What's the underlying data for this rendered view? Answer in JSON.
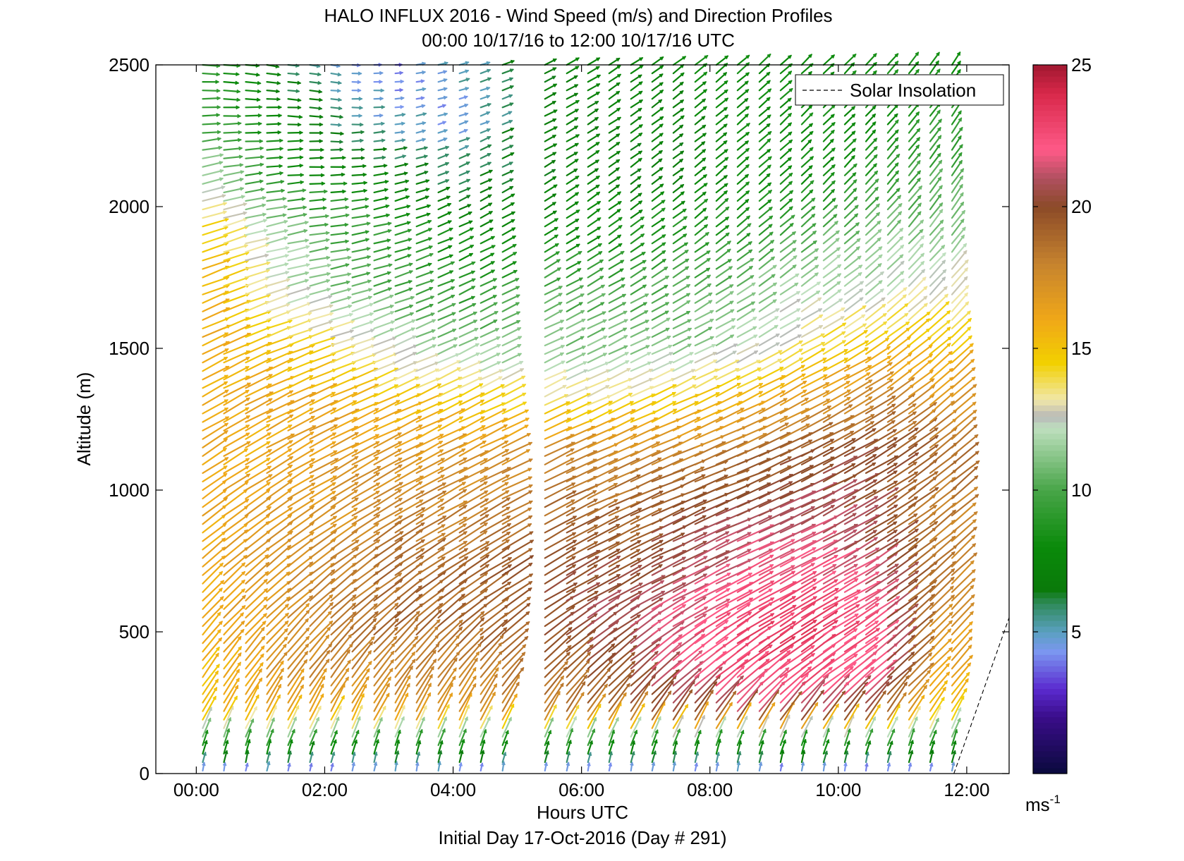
{
  "chart_data": {
    "type": "wind-barb profile (quiver)",
    "title": "HALO INFLUX 2016 - Wind Speed (m/s) and Direction Profiles",
    "subtitle": "00:00 10/17/16 to 12:00 10/17/16  UTC",
    "xlabel": "Hours UTC",
    "ylabel": "Altitude (m)",
    "footer": "Initial Day 17-Oct-2016 (Day # 291)",
    "xlim": [
      -0.63,
      12.66
    ],
    "ylim": [
      0,
      2500
    ],
    "x_ticks": [
      {
        "v": 0,
        "label": "00:00"
      },
      {
        "v": 2,
        "label": "02:00"
      },
      {
        "v": 4,
        "label": "04:00"
      },
      {
        "v": 6,
        "label": "06:00"
      },
      {
        "v": 8,
        "label": "08:00"
      },
      {
        "v": 10,
        "label": "10:00"
      },
      {
        "v": 12,
        "label": "12:00"
      }
    ],
    "y_ticks": [
      {
        "v": 0,
        "label": "0"
      },
      {
        "v": 500,
        "label": "500"
      },
      {
        "v": 1000,
        "label": "1000"
      },
      {
        "v": 1500,
        "label": "1500"
      },
      {
        "v": 2000,
        "label": "2000"
      },
      {
        "v": 2500,
        "label": "2500"
      }
    ],
    "legend": {
      "entries": [
        "Solar Insolation"
      ],
      "placement": "top-right"
    },
    "colorbar": {
      "range": [
        0,
        25
      ],
      "ticks": [
        {
          "v": 5,
          "label": "5"
        },
        {
          "v": 10,
          "label": "10"
        },
        {
          "v": 15,
          "label": "15"
        },
        {
          "v": 20,
          "label": "20"
        },
        {
          "v": 25,
          "label": "25"
        }
      ],
      "unit_base": "ms",
      "unit_exp": "-1",
      "stops": [
        {
          "v": 0,
          "color": "#0a0a3c"
        },
        {
          "v": 2,
          "color": "#3a0d8a"
        },
        {
          "v": 3,
          "color": "#5b2bd0"
        },
        {
          "v": 4.3,
          "color": "#7b96f0"
        },
        {
          "v": 5,
          "color": "#5aa0c0"
        },
        {
          "v": 6,
          "color": "#2f8a5a"
        },
        {
          "v": 6.5,
          "color": "#0a7a0a"
        },
        {
          "v": 8,
          "color": "#0a8a0a"
        },
        {
          "v": 10,
          "color": "#48a548"
        },
        {
          "v": 12.2,
          "color": "#bfe0bf"
        },
        {
          "v": 12.6,
          "color": "#b8b8b8"
        },
        {
          "v": 13.2,
          "color": "#f1e8a8"
        },
        {
          "v": 14.5,
          "color": "#f2d000"
        },
        {
          "v": 16,
          "color": "#f0a818"
        },
        {
          "v": 18,
          "color": "#c6832e"
        },
        {
          "v": 20,
          "color": "#8b4a28"
        },
        {
          "v": 21,
          "color": "#b05060"
        },
        {
          "v": 22,
          "color": "#ff5a88"
        },
        {
          "v": 24,
          "color": "#d8284a"
        },
        {
          "v": 25,
          "color": "#a01830"
        }
      ]
    },
    "data_gap_hours": [
      4.75,
      5.35
    ],
    "profile_times_hours": [
      0.1,
      0.43,
      0.77,
      1.1,
      1.43,
      1.77,
      2.1,
      2.43,
      2.77,
      3.1,
      3.43,
      3.77,
      4.1,
      4.43,
      4.77,
      5.43,
      5.77,
      6.1,
      6.43,
      6.77,
      7.1,
      7.43,
      7.77,
      8.1,
      8.43,
      8.77,
      9.1,
      9.43,
      9.77,
      10.1,
      10.43,
      10.77,
      11.1,
      11.43,
      11.77
    ],
    "profile_altitude_step_m": 30,
    "speed_grid_ms": {
      "altitudes_m": [
        0,
        100,
        200,
        350,
        500,
        700,
        900,
        1100,
        1300,
        1500,
        1700,
        1900,
        2100,
        2300,
        2500
      ],
      "times_h": [
        0,
        1,
        2,
        3,
        4,
        5.5,
        6.5,
        7.5,
        8.5,
        9.5,
        10.5,
        11.5
      ],
      "values": [
        [
          4,
          4,
          4,
          4,
          4,
          4,
          4,
          4,
          4,
          4,
          4,
          4
        ],
        [
          9,
          9,
          9,
          9,
          9,
          9,
          9,
          9,
          9,
          9,
          9,
          9
        ],
        [
          15,
          16,
          16,
          17,
          17,
          18,
          19,
          20,
          21,
          21,
          20,
          15
        ],
        [
          15,
          17,
          18,
          18,
          18,
          19,
          20,
          22,
          23,
          23,
          22,
          16
        ],
        [
          16,
          17,
          18,
          19,
          19,
          20,
          21,
          22,
          23,
          23,
          22,
          17
        ],
        [
          16,
          17,
          18,
          19,
          19,
          20,
          20,
          21,
          22,
          22,
          21,
          18
        ],
        [
          16,
          17,
          17,
          18,
          18,
          19,
          19,
          20,
          21,
          21,
          20,
          18
        ],
        [
          16,
          16,
          17,
          17,
          17,
          18,
          18,
          18,
          19,
          20,
          20,
          19
        ],
        [
          16,
          16,
          16,
          15,
          15,
          14,
          14,
          15,
          16,
          17,
          18,
          17
        ],
        [
          16,
          15,
          14,
          12,
          11,
          11,
          11,
          11,
          12,
          14,
          15,
          15
        ],
        [
          16,
          13,
          11,
          10,
          9,
          10,
          10,
          10,
          11,
          12,
          12,
          13
        ],
        [
          15,
          12,
          10,
          9,
          8,
          8,
          8,
          9,
          9,
          10,
          11,
          11
        ],
        [
          12,
          9,
          8,
          7,
          6,
          7,
          7,
          7,
          8,
          8,
          9,
          10
        ],
        [
          10,
          8,
          6,
          5,
          4.5,
          7,
          7,
          7,
          8,
          8,
          8,
          9
        ],
        [
          9,
          7,
          5,
          4,
          5,
          7,
          7,
          8,
          8,
          8,
          8,
          8
        ]
      ]
    },
    "direction_grid_deg": {
      "note": "vector angle from +x axis toward +altitude (counterclockwise), degrees",
      "altitudes_m": [
        0,
        100,
        300,
        600,
        1000,
        1500,
        2000,
        2500
      ],
      "times_h": [
        0,
        2,
        4,
        6,
        8,
        10,
        11.8
      ],
      "values": [
        [
          80,
          80,
          80,
          80,
          80,
          80,
          80
        ],
        [
          70,
          70,
          70,
          70,
          70,
          70,
          70
        ],
        [
          55,
          55,
          55,
          45,
          40,
          38,
          50
        ],
        [
          45,
          40,
          35,
          30,
          28,
          30,
          45
        ],
        [
          35,
          30,
          28,
          25,
          22,
          28,
          40
        ],
        [
          25,
          20,
          25,
          25,
          28,
          30,
          45
        ],
        [
          18,
          5,
          25,
          35,
          40,
          45,
          55
        ],
        [
          -5,
          -10,
          15,
          30,
          40,
          45,
          55
        ]
      ]
    },
    "solar_insolation_line": {
      "style": "dashed",
      "x": [
        11.8,
        12.66
      ],
      "y": [
        0,
        550
      ]
    }
  }
}
